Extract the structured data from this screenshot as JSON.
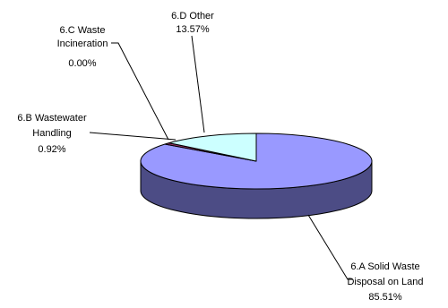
{
  "chart_data": {
    "type": "pie",
    "style": "3d",
    "title": "",
    "slices": [
      {
        "label_lines": [
          "6.A Solid Waste",
          "Disposal on Land"
        ],
        "value_text": "85.51%",
        "value": 85.51,
        "color": "#9999ff",
        "side_color": "#4c4c85"
      },
      {
        "label_lines": [
          "6.B Wastewater",
          "Handling"
        ],
        "value_text": "0.92%",
        "value": 0.92,
        "color": "#993366",
        "side_color": "#4d1a33"
      },
      {
        "label_lines": [
          "6.C Waste",
          "Incineration"
        ],
        "value_text": "0.00%",
        "value": 0.0,
        "color": "#ffffcc",
        "side_color": "#808066"
      },
      {
        "label_lines": [
          "6.D Other"
        ],
        "value_text": "13.57%",
        "value": 13.57,
        "color": "#ccffff",
        "side_color": "#668080"
      }
    ],
    "legend": "none"
  }
}
